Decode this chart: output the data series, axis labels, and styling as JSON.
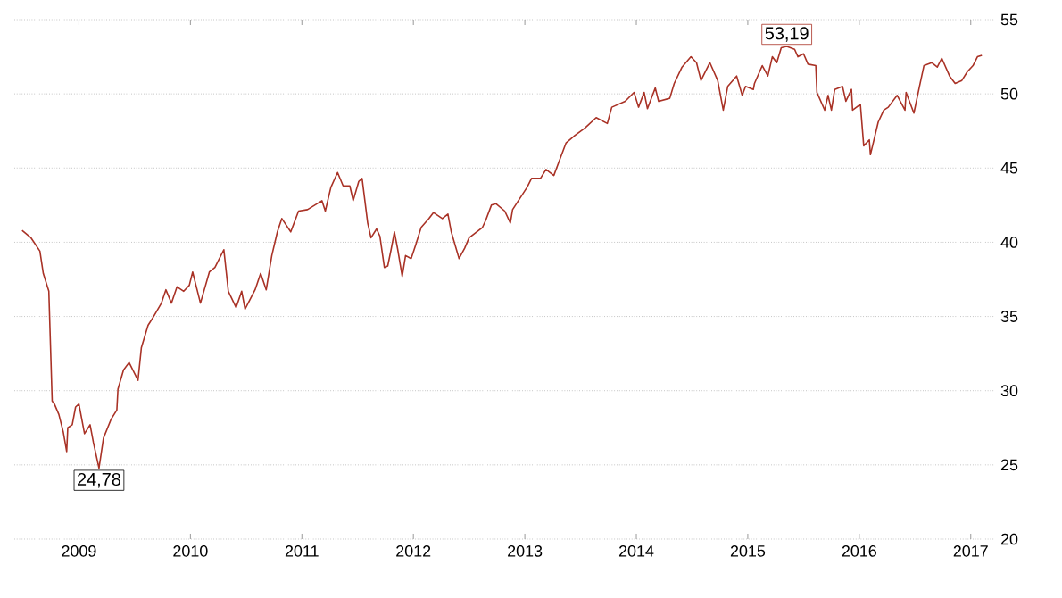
{
  "chart_data": {
    "type": "line",
    "color": "#a93226",
    "grid": "y",
    "marker": "none",
    "xlim": [
      2008.42,
      2017.21
    ],
    "ylim": [
      20,
      55
    ],
    "xticks": [
      2009,
      2010,
      2011,
      2012,
      2013,
      2014,
      2015,
      2016,
      2017
    ],
    "yticks": [
      20,
      25,
      30,
      35,
      40,
      45,
      50,
      55
    ],
    "annotations": [
      {
        "text": "24,78",
        "x": 2009.18,
        "y": 24.78
      },
      {
        "text": "53,19",
        "x": 2015.35,
        "y": 53.19
      }
    ],
    "x": [
      2008.49,
      2008.57,
      2008.65,
      2008.68,
      2008.73,
      2008.76,
      2008.78,
      2008.82,
      2008.86,
      2008.89,
      2008.9,
      2008.94,
      2008.97,
      2009.0,
      2009.05,
      2009.1,
      2009.13,
      2009.18,
      2009.22,
      2009.29,
      2009.34,
      2009.35,
      2009.4,
      2009.45,
      2009.53,
      2009.56,
      2009.62,
      2009.67,
      2009.74,
      2009.78,
      2009.83,
      2009.88,
      2009.94,
      2009.99,
      2010.02,
      2010.09,
      2010.17,
      2010.22,
      2010.3,
      2010.34,
      2010.41,
      2010.46,
      2010.49,
      2010.58,
      2010.63,
      2010.68,
      2010.73,
      2010.78,
      2010.82,
      2010.9,
      2010.97,
      2011.05,
      2011.18,
      2011.21,
      2011.26,
      2011.32,
      2011.37,
      2011.43,
      2011.46,
      2011.51,
      2011.54,
      2011.59,
      2011.62,
      2011.67,
      2011.7,
      2011.74,
      2011.77,
      2011.8,
      2011.83,
      2011.86,
      2011.9,
      2011.93,
      2011.98,
      2012.02,
      2012.07,
      2012.14,
      2012.18,
      2012.26,
      2012.31,
      2012.34,
      2012.41,
      2012.46,
      2012.5,
      2012.62,
      2012.65,
      2012.7,
      2012.74,
      2012.82,
      2012.87,
      2012.89,
      2013.02,
      2013.06,
      2013.14,
      2013.19,
      2013.26,
      2013.3,
      2013.37,
      2013.45,
      2013.54,
      2013.64,
      2013.74,
      2013.78,
      2013.9,
      2013.98,
      2014.02,
      2014.07,
      2014.1,
      2014.17,
      2014.2,
      2014.3,
      2014.34,
      2014.41,
      2014.49,
      2014.54,
      2014.58,
      2014.66,
      2014.73,
      2014.78,
      2014.82,
      2014.9,
      2014.95,
      2014.98,
      2015.05,
      2015.06,
      2015.13,
      2015.18,
      2015.22,
      2015.26,
      2015.3,
      2015.35,
      2015.42,
      2015.45,
      2015.5,
      2015.54,
      2015.61,
      2015.62,
      2015.69,
      2015.72,
      2015.75,
      2015.78,
      2015.85,
      2015.88,
      2015.93,
      2015.94,
      2016.01,
      2016.04,
      2016.09,
      2016.1,
      2016.17,
      2016.22,
      2016.26,
      2016.34,
      2016.41,
      2016.42,
      2016.49,
      2016.54,
      2016.58,
      2016.65,
      2016.7,
      2016.74,
      2016.81,
      2016.86,
      2016.92,
      2016.97,
      2017.02,
      2017.06,
      2017.1
    ],
    "values": [
      40.8,
      40.3,
      39.4,
      37.9,
      36.7,
      29.3,
      29.1,
      28.4,
      27.2,
      25.9,
      27.5,
      27.7,
      28.9,
      29.1,
      27.1,
      27.7,
      26.5,
      24.78,
      26.8,
      28.1,
      28.7,
      30.1,
      31.4,
      31.9,
      30.7,
      32.9,
      34.4,
      35.0,
      35.9,
      36.8,
      35.9,
      37.0,
      36.7,
      37.1,
      38.0,
      35.9,
      38.0,
      38.3,
      39.5,
      36.7,
      35.6,
      36.7,
      35.5,
      36.8,
      37.9,
      36.8,
      39.1,
      40.7,
      41.6,
      40.7,
      42.1,
      42.2,
      42.8,
      42.1,
      43.7,
      44.7,
      43.8,
      43.8,
      42.8,
      44.1,
      44.3,
      41.3,
      40.3,
      40.9,
      40.4,
      38.3,
      38.4,
      39.5,
      40.7,
      39.5,
      37.7,
      39.1,
      38.9,
      39.8,
      41.0,
      41.6,
      42.0,
      41.6,
      41.9,
      40.7,
      38.9,
      39.6,
      40.3,
      41.0,
      41.5,
      42.5,
      42.6,
      42.1,
      41.3,
      42.2,
      43.7,
      44.3,
      44.3,
      44.9,
      44.5,
      45.3,
      46.7,
      47.2,
      47.7,
      48.4,
      48.0,
      49.1,
      49.5,
      50.1,
      49.1,
      50.1,
      49.0,
      50.4,
      49.5,
      49.7,
      50.7,
      51.8,
      52.5,
      52.1,
      50.9,
      52.1,
      50.9,
      48.9,
      50.5,
      51.2,
      49.9,
      50.5,
      50.3,
      50.7,
      51.9,
      51.2,
      52.5,
      52.1,
      53.1,
      53.19,
      53.0,
      52.5,
      52.7,
      52.0,
      51.9,
      50.1,
      48.9,
      49.9,
      48.9,
      50.3,
      50.5,
      49.5,
      50.3,
      48.9,
      49.3,
      46.5,
      46.9,
      45.9,
      48.1,
      48.9,
      49.1,
      49.9,
      48.9,
      50.1,
      48.7,
      50.5,
      51.9,
      52.1,
      51.8,
      52.4,
      51.2,
      50.7,
      50.9,
      51.5,
      51.9,
      52.5,
      52.6
    ]
  }
}
